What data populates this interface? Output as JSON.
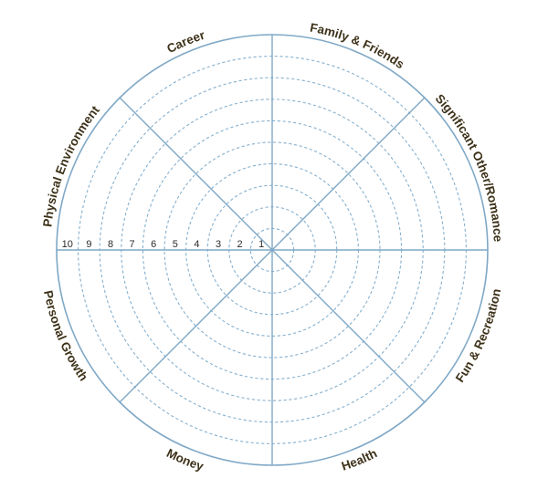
{
  "wheel": {
    "rings": 10,
    "scale_labels": [
      "10",
      "9",
      "8",
      "7",
      "6",
      "5",
      "4",
      "3",
      "2",
      "1"
    ],
    "categories": [
      {
        "id": "career",
        "label": "Career"
      },
      {
        "id": "family-friends",
        "label": "Family & Friends"
      },
      {
        "id": "significant-other",
        "label": "Significant Other/Romance"
      },
      {
        "id": "fun-recreation",
        "label": "Fun & Recreation"
      },
      {
        "id": "health",
        "label": "Health"
      },
      {
        "id": "money",
        "label": "Money"
      },
      {
        "id": "personal-growth",
        "label": "Personal Growth"
      },
      {
        "id": "physical-environment",
        "label": "Physical Environment"
      }
    ],
    "colors": {
      "line": "#7fa8c6",
      "text": "#3d3219"
    }
  }
}
